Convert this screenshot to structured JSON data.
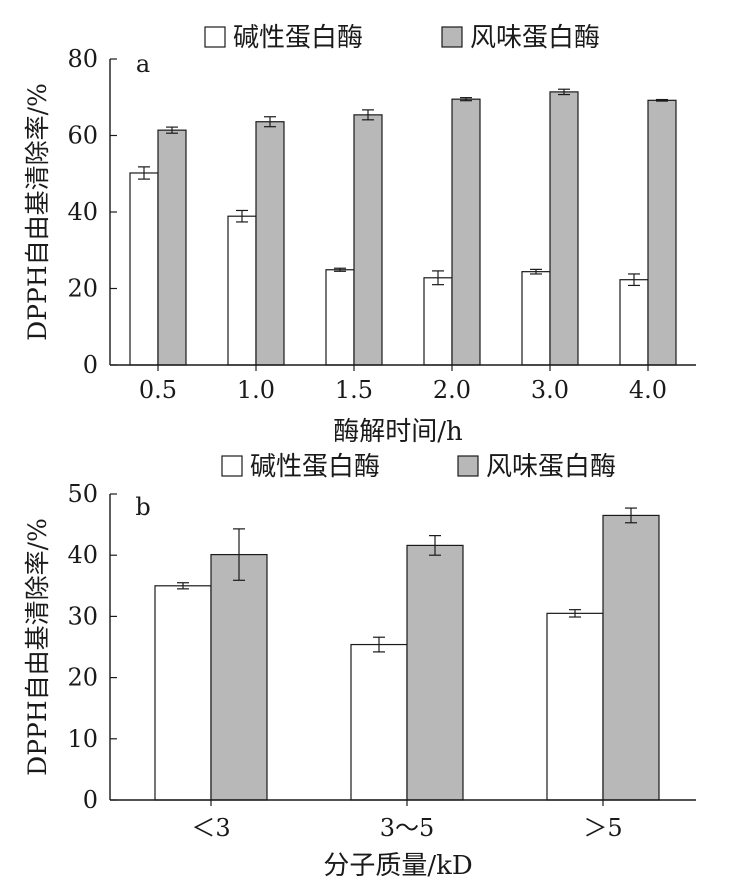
{
  "chart_data": [
    {
      "type": "bar",
      "panel_label": "a",
      "categories": [
        "0.5",
        "1.0",
        "1.5",
        "2.0",
        "3.0",
        "4.0"
      ],
      "series": [
        {
          "name": "碱性蛋白酶",
          "values": [
            50.2,
            38.9,
            24.9,
            22.8,
            24.4,
            22.3
          ],
          "errors": [
            1.6,
            1.5,
            0.4,
            1.8,
            0.6,
            1.5
          ],
          "color": "#ffffff"
        },
        {
          "name": "风味蛋白酶",
          "values": [
            61.4,
            63.6,
            65.4,
            69.5,
            71.4,
            69.2
          ],
          "errors": [
            0.8,
            1.3,
            1.3,
            0.4,
            0.7,
            0.2
          ],
          "color": "#b8b8b8"
        }
      ],
      "xlabel": "酶解时间/h",
      "ylabel": "DPPH自由基清除率/%",
      "ylim": [
        0,
        80
      ],
      "yticks": [
        "0",
        "20",
        "40",
        "60",
        "80"
      ],
      "legend_position": "top",
      "grid": false
    },
    {
      "type": "bar",
      "panel_label": "b",
      "categories": [
        "＜3",
        "3～5",
        "＞5"
      ],
      "series": [
        {
          "name": "碱性蛋白酶",
          "values": [
            35.0,
            25.4,
            30.5
          ],
          "errors": [
            0.5,
            1.2,
            0.6
          ],
          "color": "#ffffff"
        },
        {
          "name": "风味蛋白酶",
          "values": [
            40.1,
            41.6,
            46.5
          ],
          "errors": [
            4.2,
            1.6,
            1.2
          ],
          "color": "#b8b8b8"
        }
      ],
      "xlabel": "分子质量/kD",
      "ylabel": "DPPH自由基清除率/%",
      "ylim": [
        0,
        50
      ],
      "yticks": [
        "0",
        "10",
        "20",
        "30",
        "40",
        "50"
      ],
      "legend_position": "top",
      "grid": false
    }
  ]
}
